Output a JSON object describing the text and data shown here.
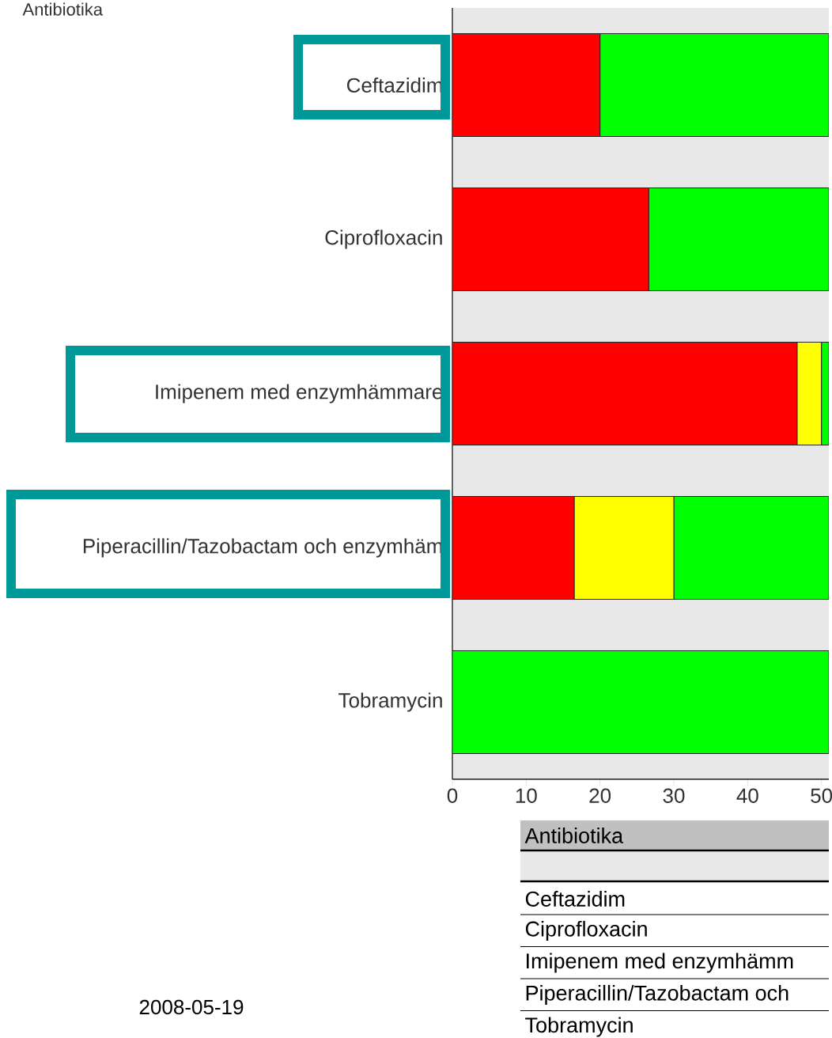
{
  "chart_data": {
    "type": "bar",
    "orientation": "horizontal",
    "stacked": true,
    "ylabel": "Antibiotika",
    "categories": [
      "Ceftazidim",
      "Ciprofloxacin",
      "Imipenem med enzymhämmare",
      "Piperacillin/Tazobactam och enzymhäm",
      "Tobramycin"
    ],
    "series": [
      {
        "color": "#ff0000",
        "values": [
          20.0,
          26.6,
          46.7,
          16.5,
          0
        ]
      },
      {
        "color": "#ffff00",
        "values": [
          0,
          0,
          3.3,
          13.5,
          0
        ]
      },
      {
        "color": "#00ff00",
        "values": [
          31.0,
          24.4,
          1.0,
          21.0,
          51.0
        ]
      }
    ],
    "xlim": [
      0,
      51
    ],
    "xticks": [
      0,
      10,
      20,
      30,
      40,
      50
    ],
    "grid": false,
    "annotations": [
      "Antibiotika",
      "Ceftazidim",
      "Ciprofloxacin",
      "Imipenem med enzymhämm",
      "Piperacillin/Tazobactam och",
      "Tobramycin",
      "2008-05-19"
    ]
  }
}
